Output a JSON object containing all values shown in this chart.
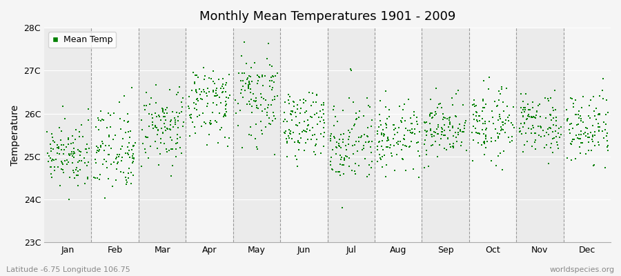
{
  "title": "Monthly Mean Temperatures 1901 - 2009",
  "ylabel": "Temperature",
  "xlabel_labels": [
    "Jan",
    "Feb",
    "Mar",
    "Apr",
    "May",
    "Jun",
    "Jul",
    "Aug",
    "Sep",
    "Oct",
    "Nov",
    "Dec"
  ],
  "ytick_labels": [
    "23C",
    "24C",
    "25C",
    "26C",
    "27C",
    "28C"
  ],
  "ytick_values": [
    23,
    24,
    25,
    26,
    27,
    28
  ],
  "ylim": [
    23,
    28
  ],
  "dot_color": "#008000",
  "dot_size": 3,
  "legend_label": "Mean Temp",
  "footer_left": "Latitude -6.75 Longitude 106.75",
  "footer_right": "worldspecies.org",
  "background_color": "#f5f5f5",
  "plot_background_color": "#f0f0f0",
  "band_color_1": "#ebebeb",
  "band_color_2": "#f5f5f5",
  "years": 109,
  "start_year": 1901,
  "end_year": 2009,
  "monthly_means": [
    25.1,
    25.2,
    25.7,
    26.3,
    26.3,
    25.8,
    25.4,
    25.5,
    25.7,
    25.8,
    25.8,
    25.6
  ],
  "monthly_stds": [
    0.35,
    0.5,
    0.45,
    0.45,
    0.45,
    0.45,
    0.55,
    0.42,
    0.38,
    0.38,
    0.38,
    0.4
  ],
  "seed": 12
}
